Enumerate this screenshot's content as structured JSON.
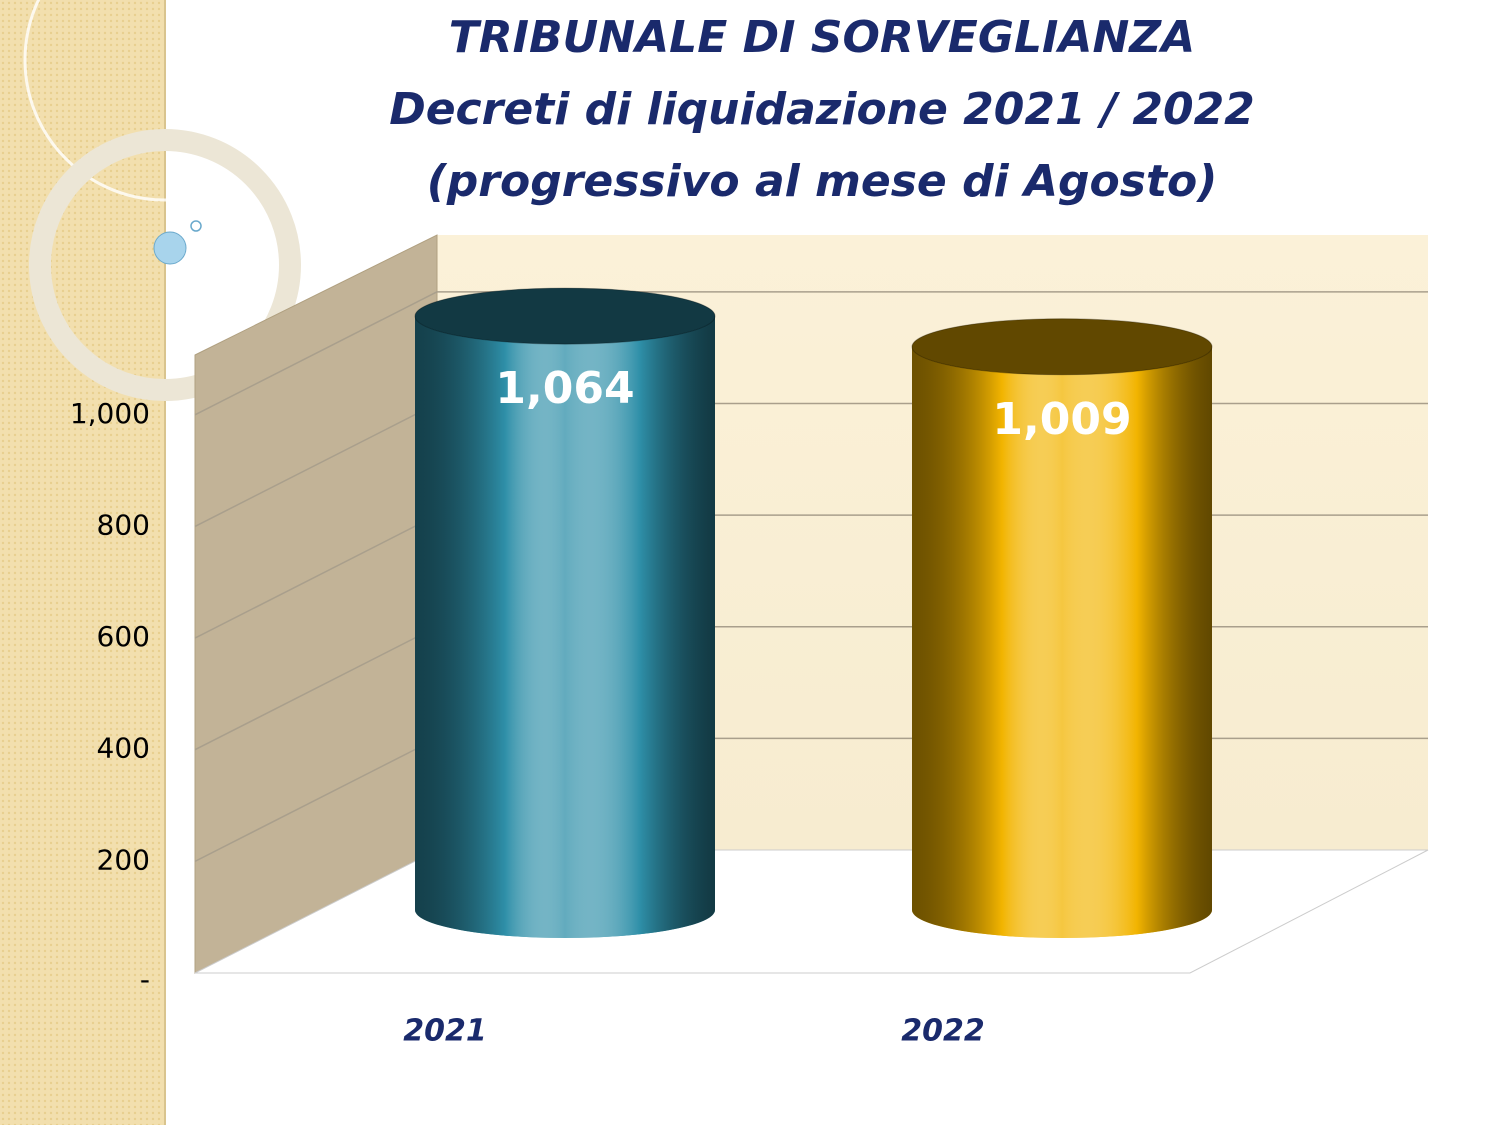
{
  "chart_data": {
    "type": "bar",
    "title": "TRIBUNALE DI SORVEGLIANZA",
    "subtitle": [
      "Decreti di liquidazione 2021 / 2022",
      "(progressivo al mese di Agosto)"
    ],
    "categories": [
      "2021",
      "2022"
    ],
    "values": [
      1064,
      1009
    ],
    "value_labels": [
      "1,064",
      "1,009"
    ],
    "colors": [
      "#2e8fa8",
      "#f2b400"
    ],
    "ylim": [
      0,
      1100
    ],
    "yticks": [
      {
        "value": 0,
        "label": "-"
      },
      200,
      400,
      600,
      800,
      {
        "value": 1000,
        "label": "1,000"
      }
    ],
    "grid": true
  }
}
